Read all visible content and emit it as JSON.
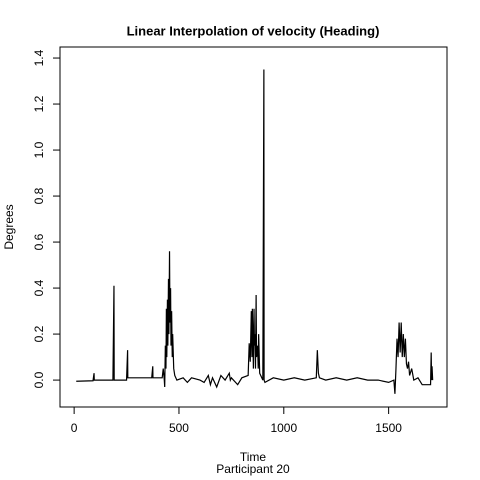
{
  "chart_data": {
    "type": "line",
    "title": "Linear Interpolation of velocity (Heading)",
    "x_label": "Time",
    "subtitle": "Participant  20",
    "y_label": "Degrees",
    "color": "#000000",
    "x": [
      10,
      90,
      95,
      96,
      100,
      185,
      190,
      191,
      195,
      250,
      255,
      256,
      260,
      370,
      375,
      376,
      380,
      420,
      425,
      430,
      432,
      435,
      438,
      440,
      442,
      445,
      447,
      450,
      452,
      455,
      457,
      460,
      462,
      465,
      468,
      470,
      475,
      480,
      490,
      520,
      540,
      560,
      600,
      620,
      640,
      650,
      660,
      680,
      700,
      720,
      740,
      745,
      750,
      780,
      800,
      830,
      835,
      840,
      845,
      848,
      850,
      855,
      858,
      860,
      862,
      865,
      868,
      870,
      875,
      878,
      880,
      885,
      890,
      900,
      905,
      906,
      910,
      950,
      1000,
      1050,
      1100,
      1155,
      1160,
      1165,
      1170,
      1200,
      1250,
      1300,
      1350,
      1400,
      1450,
      1500,
      1525,
      1530,
      1535,
      1540,
      1545,
      1550,
      1555,
      1560,
      1565,
      1570,
      1575,
      1580,
      1585,
      1590,
      1595,
      1600,
      1610,
      1620,
      1640,
      1660,
      1680,
      1700,
      1703,
      1705,
      1707,
      1710
    ],
    "values": [
      -0.005,
      -0.003,
      0.03,
      0,
      0,
      0,
      0.41,
      0,
      0,
      0,
      0.13,
      0.01,
      0.01,
      0.01,
      0.06,
      0.01,
      0.01,
      0.01,
      0.05,
      0,
      -0.03,
      0.15,
      0.05,
      0.31,
      0.1,
      0.35,
      0.15,
      0.44,
      0.2,
      0.56,
      0.25,
      0.4,
      0.15,
      0.3,
      0.1,
      0.2,
      0.05,
      0.02,
      0,
      0.01,
      -0.01,
      0.01,
      0,
      -0.01,
      0.02,
      -0.02,
      0.01,
      -0.03,
      0.02,
      0,
      0.03,
      0,
      0.01,
      -0.02,
      0.01,
      0.02,
      0.16,
      0.08,
      0.3,
      0.1,
      0.31,
      0.05,
      0.31,
      0.15,
      0.2,
      0.05,
      0.37,
      0.1,
      0.15,
      0.05,
      0.2,
      0.03,
      0.02,
      0,
      1.35,
      0,
      -0.01,
      0.01,
      0,
      0.01,
      0,
      0.01,
      0.13,
      0.03,
      0.01,
      0,
      0.01,
      0,
      0.01,
      0,
      0,
      -0.01,
      0,
      -0.06,
      0.05,
      0.18,
      0.1,
      0.25,
      0.12,
      0.25,
      0.1,
      0.2,
      0.1,
      0.18,
      0.07,
      0.05,
      0.08,
      0.02,
      0.05,
      0,
      0.01,
      -0.02,
      -0.02,
      -0.02,
      0.12,
      0,
      0.06,
      0
    ],
    "xlim": [
      -67.4,
      1778.4
    ],
    "ylim": [
      -0.117,
      1.448
    ],
    "xticks": [
      0,
      500,
      1000,
      1500
    ],
    "yticks": [
      {
        "value": 0,
        "label": "0.0"
      },
      0.2,
      0.4,
      0.6,
      0.8,
      {
        "value": 1,
        "label": "1.0"
      },
      1.2,
      1.4
    ]
  }
}
